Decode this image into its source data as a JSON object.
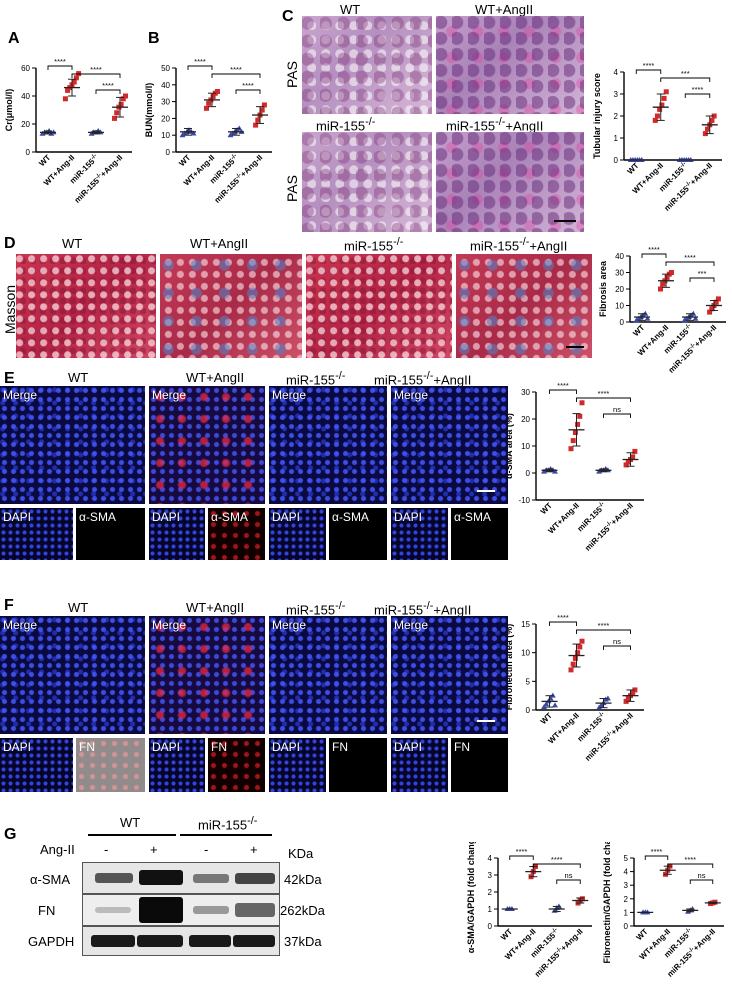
{
  "panels": {
    "A": "A",
    "B": "B",
    "C": "C",
    "D": "D",
    "E": "E",
    "F": "F",
    "G": "G"
  },
  "groups": {
    "wt": "WT",
    "wt_angii": "WT+AngII",
    "mir": "miR-155",
    "mir_angii": "miR-155",
    "mir_sup": "-/-",
    "mir_suffix": "+AngII"
  },
  "stain": {
    "pas": "PAS",
    "masson": "Masson",
    "merge": "Merge",
    "dapi": "DAPI",
    "asma": "α-SMA",
    "fn": "FN"
  },
  "sig": {
    "s4": "****",
    "s3": "***",
    "ns": "ns"
  },
  "xcats": [
    "WT",
    "WT+Ang-II",
    "miR-155",
    "miR-155"
  ],
  "xcat_sup": "-/-",
  "xcat_suffix": "+Ang-II",
  "blot": {
    "wt": "WT",
    "mir": "miR-155",
    "mir_sup": "-/-",
    "angii": "Ang-II",
    "lanes": [
      "-",
      "+",
      "-",
      "+"
    ],
    "kda": "KDa",
    "rows": [
      {
        "name": "α-SMA",
        "mw": "42kDa"
      },
      {
        "name": "FN",
        "mw": "262kDa"
      },
      {
        "name": "GAPDH",
        "mw": "37kDa"
      }
    ]
  },
  "chart_data": [
    {
      "id": "A",
      "type": "scatter",
      "ylabel": "Cr(μmol/l)",
      "ylim": [
        0,
        60
      ],
      "yticks": [
        0,
        20,
        40,
        60
      ],
      "means": [
        14,
        46,
        14,
        32
      ],
      "sds": [
        1,
        6,
        1,
        7
      ],
      "colors": [
        "#3a48a8",
        "#d12a2a",
        "#3a48a8",
        "#d12a2a"
      ],
      "points": [
        [
          13,
          14,
          14,
          15,
          13,
          14
        ],
        [
          38,
          44,
          46,
          48,
          50,
          53,
          56
        ],
        [
          13,
          14,
          14,
          15,
          14
        ],
        [
          24,
          28,
          32,
          34,
          38,
          40
        ]
      ],
      "brackets": [
        {
          "from": 0,
          "to": 1,
          "label": "****"
        },
        {
          "from": 1,
          "to": 3,
          "label": "****"
        },
        {
          "from": 2,
          "to": 3,
          "label": "****"
        }
      ]
    },
    {
      "id": "B",
      "type": "scatter",
      "ylabel": "BUN(mmol/l)",
      "ylim": [
        0,
        50
      ],
      "yticks": [
        0,
        10,
        20,
        30,
        40,
        50
      ],
      "means": [
        12,
        31,
        12,
        22
      ],
      "sds": [
        2,
        4,
        2,
        5
      ],
      "colors": [
        "#3a48a8",
        "#d12a2a",
        "#3a48a8",
        "#d12a2a"
      ],
      "points": [
        [
          10,
          11,
          12,
          13,
          12,
          11
        ],
        [
          26,
          29,
          31,
          33,
          35,
          36
        ],
        [
          10,
          11,
          12,
          13,
          14,
          12
        ],
        [
          16,
          19,
          22,
          25,
          28
        ]
      ],
      "brackets": [
        {
          "from": 0,
          "to": 1,
          "label": "****"
        },
        {
          "from": 1,
          "to": 3,
          "label": "****"
        },
        {
          "from": 2,
          "to": 3,
          "label": "****"
        }
      ]
    },
    {
      "id": "C",
      "type": "scatter",
      "ylabel": "Tubular injury score",
      "ylim": [
        0,
        4
      ],
      "yticks": [
        0,
        1,
        2,
        3,
        4
      ],
      "means": [
        0,
        2.4,
        0,
        1.6
      ],
      "sds": [
        0,
        0.6,
        0,
        0.4
      ],
      "colors": [
        "#3a48a8",
        "#d12a2a",
        "#3a48a8",
        "#d12a2a"
      ],
      "points": [
        [
          0,
          0,
          0,
          0,
          0,
          0
        ],
        [
          1.8,
          2.0,
          2.3,
          2.5,
          2.8,
          3.1
        ],
        [
          0,
          0,
          0,
          0,
          0,
          0
        ],
        [
          1.2,
          1.4,
          1.6,
          1.8,
          2.0
        ]
      ],
      "brackets": [
        {
          "from": 0,
          "to": 1,
          "label": "****"
        },
        {
          "from": 1,
          "to": 3,
          "label": "***"
        },
        {
          "from": 2,
          "to": 3,
          "label": "****"
        }
      ]
    },
    {
      "id": "D",
      "type": "scatter",
      "ylabel": "Fibrosis area",
      "ylim": [
        0,
        40
      ],
      "yticks": [
        0,
        10,
        20,
        30,
        40
      ],
      "means": [
        3,
        25,
        3,
        10
      ],
      "sds": [
        2,
        4,
        2,
        3
      ],
      "colors": [
        "#3a48a8",
        "#d12a2a",
        "#3a48a8",
        "#d12a2a"
      ],
      "points": [
        [
          1,
          2,
          3,
          4,
          5,
          2
        ],
        [
          20,
          23,
          25,
          27,
          29,
          30
        ],
        [
          1,
          2,
          3,
          4,
          5,
          2
        ],
        [
          6,
          8,
          10,
          12,
          14
        ]
      ],
      "brackets": [
        {
          "from": 0,
          "to": 1,
          "label": "****"
        },
        {
          "from": 1,
          "to": 3,
          "label": "****"
        },
        {
          "from": 2,
          "to": 3,
          "label": "***"
        }
      ]
    },
    {
      "id": "E",
      "type": "scatter",
      "ylabel": "α-SMA area (%)",
      "ylim": [
        -10,
        30
      ],
      "yticks": [
        -10,
        0,
        10,
        20,
        30
      ],
      "means": [
        1,
        16,
        1,
        5
      ],
      "sds": [
        0.5,
        6,
        0.5,
        2.5
      ],
      "colors": [
        "#3a48a8",
        "#d12a2a",
        "#3a48a8",
        "#d12a2a"
      ],
      "points": [
        [
          0.5,
          1,
          1,
          1.5,
          1,
          0.5
        ],
        [
          9,
          12,
          15,
          18,
          21,
          26
        ],
        [
          0.5,
          1,
          1,
          1.5,
          1
        ],
        [
          3,
          4,
          5,
          6,
          8
        ]
      ],
      "brackets": [
        {
          "from": 0,
          "to": 1,
          "label": "****"
        },
        {
          "from": 1,
          "to": 3,
          "label": "****"
        },
        {
          "from": 2,
          "to": 3,
          "label": "ns"
        }
      ]
    },
    {
      "id": "F",
      "type": "scatter",
      "ylabel": "Fibronectin area (%)",
      "ylim": [
        0,
        15
      ],
      "yticks": [
        0,
        5,
        10,
        15
      ],
      "means": [
        1.5,
        9.5,
        1.2,
        2.5
      ],
      "sds": [
        1,
        2,
        0.8,
        1
      ],
      "colors": [
        "#3a48a8",
        "#d12a2a",
        "#3a48a8",
        "#d12a2a"
      ],
      "points": [
        [
          0.5,
          1,
          1.5,
          2,
          2.5,
          0.8
        ],
        [
          7,
          8,
          9,
          10,
          11,
          12
        ],
        [
          0.4,
          0.8,
          1.2,
          1.8,
          2
        ],
        [
          1.5,
          2,
          2.5,
          3,
          3.5
        ]
      ],
      "brackets": [
        {
          "from": 0,
          "to": 1,
          "label": "****"
        },
        {
          "from": 1,
          "to": 3,
          "label": "****"
        },
        {
          "from": 2,
          "to": 3,
          "label": "ns"
        }
      ]
    },
    {
      "id": "G1",
      "type": "scatter",
      "ylabel": "α-SMA/GAPDH (fold change)",
      "ylim": [
        0,
        4
      ],
      "yticks": [
        0,
        1,
        2,
        3,
        4
      ],
      "means": [
        1,
        3.2,
        1.0,
        1.5
      ],
      "sds": [
        0,
        0.3,
        0.15,
        0.15
      ],
      "colors": [
        "#3a48a8",
        "#d12a2a",
        "#3a48a8",
        "#d12a2a"
      ],
      "points": [
        [
          1,
          1,
          1
        ],
        [
          2.9,
          3.2,
          3.5
        ],
        [
          0.9,
          1.05,
          1.15
        ],
        [
          1.35,
          1.5,
          1.6
        ]
      ],
      "brackets": [
        {
          "from": 0,
          "to": 1,
          "label": "****"
        },
        {
          "from": 1,
          "to": 3,
          "label": "****"
        },
        {
          "from": 2,
          "to": 3,
          "label": "ns"
        }
      ]
    },
    {
      "id": "G2",
      "type": "scatter",
      "ylabel": "Fibronectin/GAPDH (fold change)",
      "ylim": [
        0,
        5
      ],
      "yticks": [
        0,
        1,
        2,
        3,
        4,
        5
      ],
      "means": [
        1,
        4.1,
        1.15,
        1.7
      ],
      "sds": [
        0,
        0.3,
        0.1,
        0.05
      ],
      "colors": [
        "#3a48a8",
        "#d12a2a",
        "#3a48a8",
        "#d12a2a"
      ],
      "points": [
        [
          1,
          1,
          1
        ],
        [
          3.8,
          4.1,
          4.4
        ],
        [
          1.05,
          1.15,
          1.25
        ],
        [
          1.65,
          1.7,
          1.75
        ]
      ],
      "brackets": [
        {
          "from": 0,
          "to": 1,
          "label": "****"
        },
        {
          "from": 1,
          "to": 3,
          "label": "****"
        },
        {
          "from": 2,
          "to": 3,
          "label": "ns"
        }
      ]
    }
  ]
}
